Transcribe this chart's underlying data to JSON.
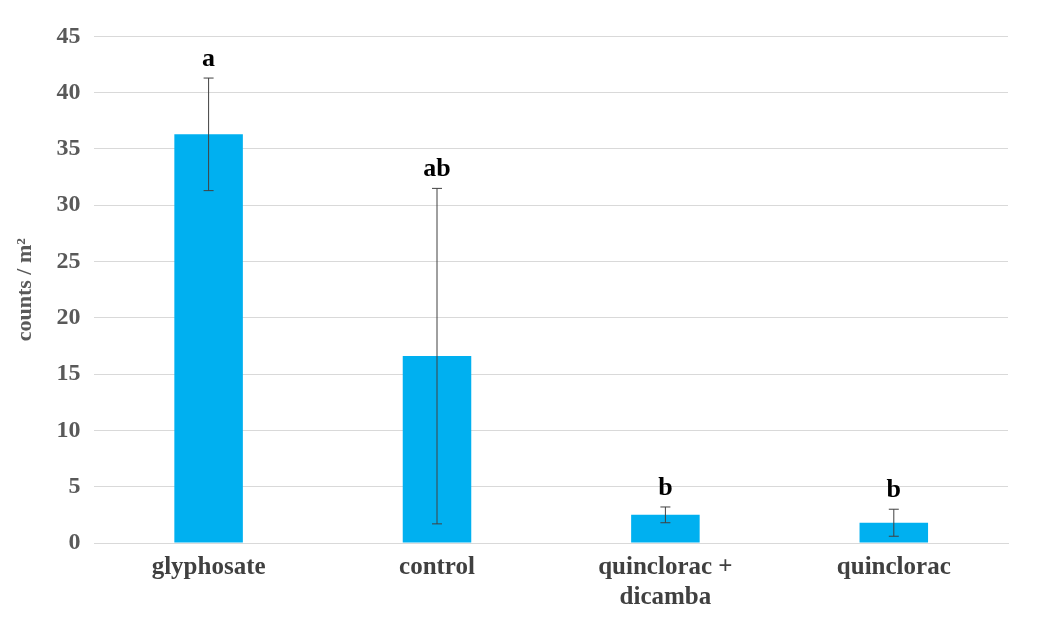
{
  "chart_data": {
    "type": "bar",
    "ylabel": "counts / m²",
    "categories": [
      "glyphosate",
      "control",
      "quinclorac + dicamba",
      "quinclorac"
    ],
    "values": [
      36.3,
      16.6,
      2.5,
      1.8
    ],
    "errors": [
      5,
      14.9,
      0.7,
      1.2
    ],
    "color": "#00b0f0",
    "ylim": [
      0,
      45
    ],
    "yticks": [
      0,
      5,
      10,
      15,
      20,
      25,
      30,
      35,
      40,
      45
    ],
    "grid": "y",
    "annotations": [
      {
        "text": "a",
        "x": "glyphosate",
        "y": 41.3
      },
      {
        "text": "ab",
        "x": "control",
        "y": 31.5
      },
      {
        "text": "b",
        "x": "quinclorac + dicamba",
        "y": 3.2
      },
      {
        "text": "b",
        "x": "quinclorac",
        "y": 3
      }
    ]
  }
}
